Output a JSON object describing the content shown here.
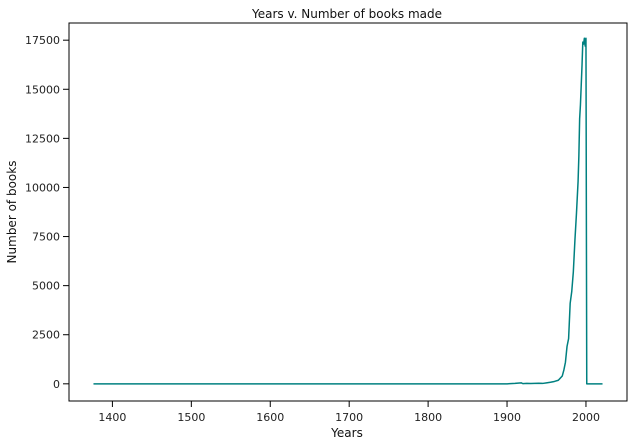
{
  "chart_data": {
    "type": "line",
    "title": "Years v. Number of books made",
    "xlabel": "Years",
    "ylabel": "Number of books",
    "xlim": [
      1345,
      2052
    ],
    "ylim": [
      -875,
      18375
    ],
    "xticks": [
      1400,
      1500,
      1600,
      1700,
      1800,
      1900,
      2000
    ],
    "yticks": [
      0,
      2500,
      5000,
      7500,
      10000,
      12500,
      15000,
      17500
    ],
    "grid": false,
    "series": [
      {
        "color": "#008080",
        "x": [
          1376,
          1900,
          1910,
          1918,
          1920,
          1925,
          1930,
          1940,
          1945,
          1950,
          1955,
          1960,
          1965,
          1970,
          1972,
          1974,
          1976,
          1978,
          1980,
          1982,
          1984,
          1986,
          1988,
          1990,
          1991,
          1992,
          1993,
          1994,
          1995,
          1996,
          1997,
          1998,
          1999,
          2000,
          2001,
          2002,
          2003,
          2010,
          2020,
          2021
        ],
        "y": [
          0,
          0,
          20,
          50,
          10,
          25,
          15,
          30,
          20,
          50,
          80,
          120,
          180,
          400,
          700,
          1100,
          1900,
          2300,
          4100,
          4700,
          5700,
          7300,
          8700,
          10300,
          11600,
          13500,
          14200,
          15200,
          16200,
          17400,
          17300,
          17600,
          17200,
          17600,
          0,
          0,
          0,
          0,
          0,
          0
        ]
      }
    ]
  }
}
